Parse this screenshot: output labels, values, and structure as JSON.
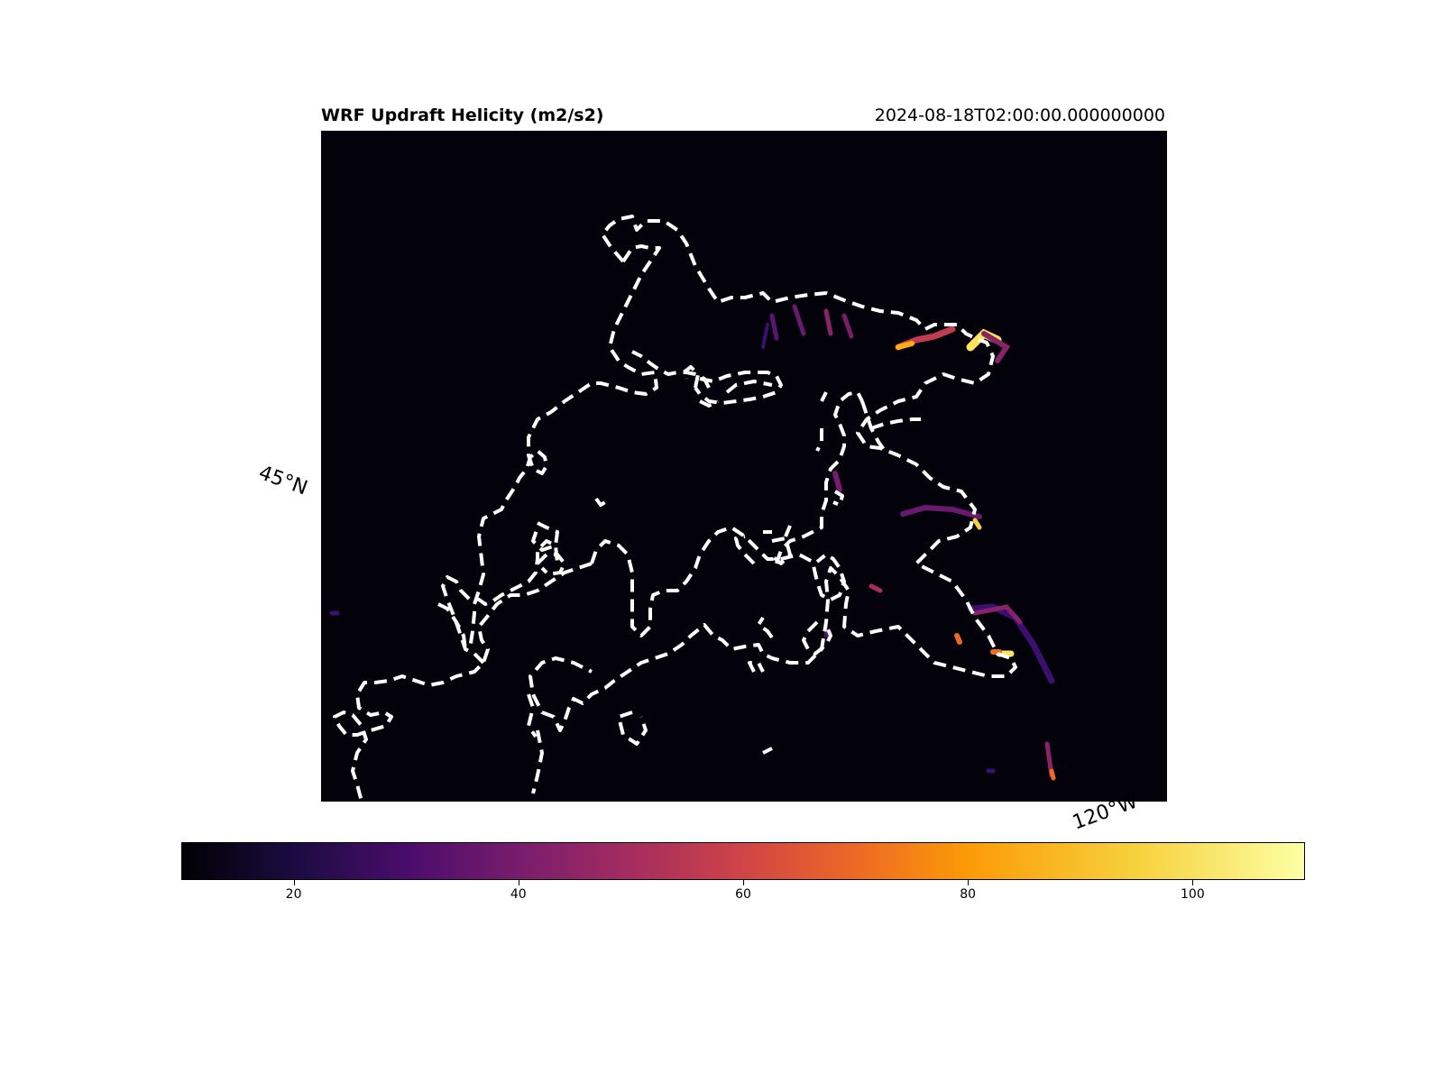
{
  "map": {
    "title": "WRF Updraft Helicity (m2/s2)",
    "time": "2024-08-18T02:00:00.000000000",
    "lat_label": "45°N",
    "lon_label": "120°W",
    "background_color": "#03020a",
    "boundary_color": "#ffffff",
    "boundary_style": "dashed"
  },
  "colorbar": {
    "colormap": "inferno",
    "range": [
      10,
      110
    ],
    "ticks": [
      {
        "value": 20,
        "label": "20"
      },
      {
        "value": 40,
        "label": "40"
      },
      {
        "value": 60,
        "label": "60"
      },
      {
        "value": 80,
        "label": "80"
      },
      {
        "value": 100,
        "label": "100"
      }
    ]
  }
}
